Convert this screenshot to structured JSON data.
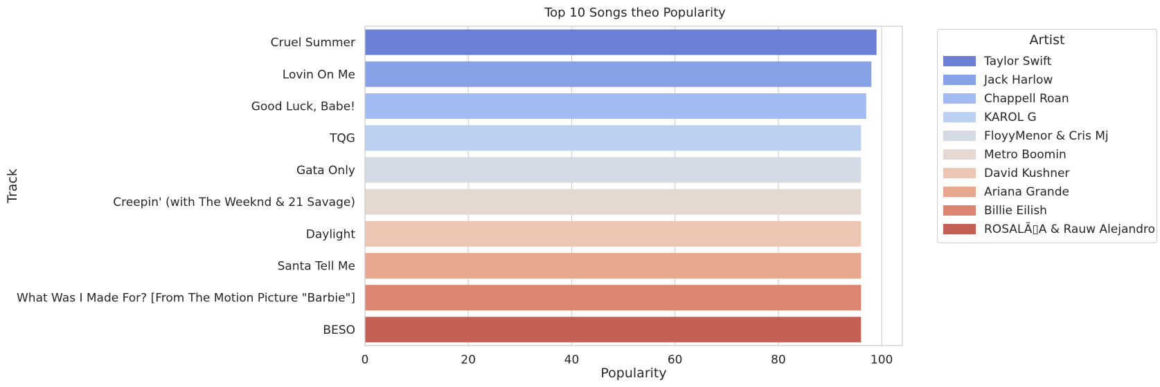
{
  "chart_data": {
    "type": "bar",
    "orientation": "horizontal",
    "title": "Top 10 Songs theo Popularity",
    "xlabel": "Popularity",
    "ylabel": "Track",
    "xlim": [
      0,
      104
    ],
    "x_ticks": [
      0,
      20,
      40,
      60,
      80,
      100
    ],
    "grid": "vertical",
    "categories": [
      "Cruel Summer",
      "Lovin On Me",
      "Good Luck, Babe!",
      "TQG",
      "Gata Only",
      "Creepin' (with The Weeknd & 21 Savage)",
      "Daylight",
      "Santa Tell Me",
      "What Was I Made For? [From The Motion Picture \"Barbie\"]",
      "BESO"
    ],
    "values": [
      99,
      98,
      97,
      96,
      96,
      96,
      96,
      96,
      96,
      96
    ],
    "artists": [
      "Taylor Swift",
      "Jack Harlow",
      "Chappell Roan",
      "KAROL G",
      "FloyyMenor & Cris Mj",
      "Metro Boomin",
      "David Kushner",
      "Ariana Grande",
      "Billie Eilish",
      "ROSALÃ▯A & Rauw Alejandro"
    ],
    "colors": [
      "#6b7fd4",
      "#86a1e6",
      "#a2bcf3",
      "#bcd0f1",
      "#d5dbe6",
      "#e5d8d1",
      "#ecc5b3",
      "#e8a78f",
      "#dc8672",
      "#c35f53"
    ],
    "legend": {
      "title": "Artist",
      "placement": "outside-right"
    }
  }
}
